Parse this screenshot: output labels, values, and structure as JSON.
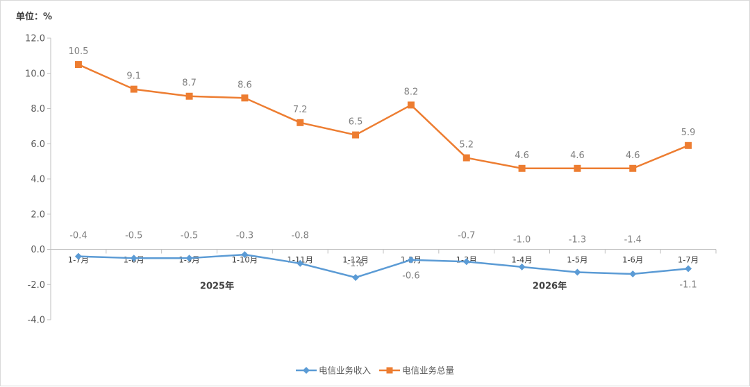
{
  "unit_label": "单位：%",
  "chart_data": {
    "type": "line",
    "categories": [
      "1-7月",
      "1-8月",
      "1-9月",
      "1-10月",
      "1-11月",
      "1-12月",
      "1-2月",
      "1-3月",
      "1-4月",
      "1-5月",
      "1-6月",
      "1-7月"
    ],
    "year_groups": [
      {
        "label": "2025年",
        "start": 0,
        "end": 5
      },
      {
        "label": "2026年",
        "start": 6,
        "end": 11
      }
    ],
    "ylim": [
      -4.0,
      12.0
    ],
    "yticks": [
      "12.0",
      "10.0",
      "8.0",
      "6.0",
      "4.0",
      "2.0",
      "0.0",
      "-2.0",
      "-4.0"
    ],
    "legend_position": "bottom",
    "series": [
      {
        "name": "电信业务收入",
        "color": "#5b9bd5",
        "marker": "diamond",
        "values": [
          -0.4,
          -0.5,
          -0.5,
          -0.3,
          -0.8,
          -1.6,
          -0.6,
          -0.7,
          -1.0,
          -1.3,
          -1.4,
          -1.1
        ],
        "labels": [
          "-0.4",
          "-0.5",
          "-0.5",
          "-0.3",
          "-0.8",
          "-1.6",
          "-0.6",
          "-0.7",
          "-1.0",
          "-1.3",
          "-1.4",
          "-1.1"
        ]
      },
      {
        "name": "电信业务总量",
        "color": "#ed7d31",
        "marker": "square",
        "values": [
          10.5,
          9.1,
          8.7,
          8.6,
          7.2,
          6.5,
          8.2,
          5.2,
          4.6,
          4.6,
          4.6,
          5.9
        ],
        "labels": [
          "10.5",
          "9.1",
          "8.7",
          "8.6",
          "7.2",
          "6.5",
          "8.2",
          "5.2",
          "4.6",
          "4.6",
          "4.6",
          "5.9"
        ]
      }
    ]
  }
}
